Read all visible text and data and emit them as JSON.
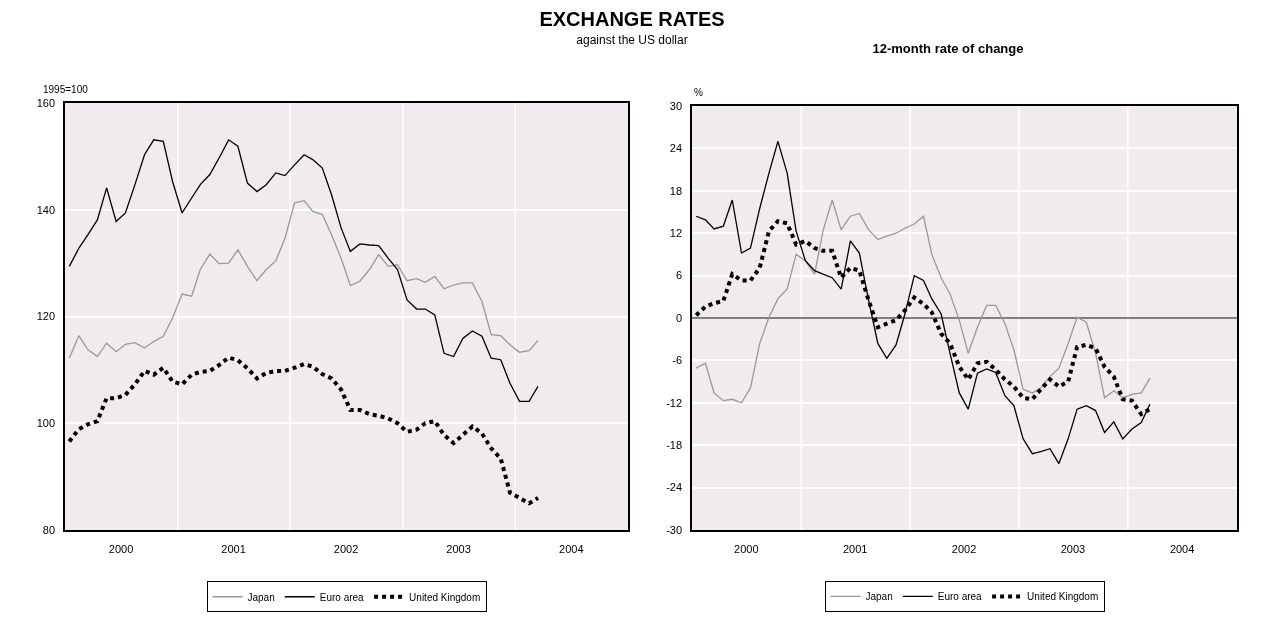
{
  "chart_data": [
    {
      "type": "line",
      "title": "EXCHANGE RATES",
      "subtitle": "against the US dollar",
      "ylabel": "1995=100",
      "ylim": [
        80,
        160
      ],
      "yticks": [
        80,
        100,
        120,
        140,
        160
      ],
      "xlim": [
        "2000-01-01",
        "2005-01-01"
      ],
      "xticks": [
        {
          "value": "2000-07-01",
          "label": "2000"
        },
        {
          "value": "2001-07-01",
          "label": "2001"
        },
        {
          "value": "2002-07-01",
          "label": "2002"
        },
        {
          "value": "2003-07-01",
          "label": "2003"
        },
        {
          "value": "2004-07-01",
          "label": "2004"
        },
        {
          "value": "2001-01-01",
          "label": null
        },
        {
          "value": "2002-01-01",
          "label": null
        },
        {
          "value": "2003-01-01",
          "label": null
        },
        {
          "value": "2004-01-01",
          "label": null
        }
      ],
      "grid": true,
      "legend": "bottom",
      "marker": "none",
      "x": [
        "2000-01-15",
        "2000-02-15",
        "2000-03-15",
        "2000-04-15",
        "2000-05-15",
        "2000-06-15",
        "2000-07-15",
        "2000-08-15",
        "2000-09-15",
        "2000-10-15",
        "2000-11-15",
        "2000-12-15",
        "2001-01-15",
        "2001-02-15",
        "2001-03-15",
        "2001-04-15",
        "2001-05-15",
        "2001-06-15",
        "2001-07-15",
        "2001-08-15",
        "2001-09-15",
        "2001-10-15",
        "2001-11-15",
        "2001-12-15",
        "2002-01-15",
        "2002-02-15",
        "2002-03-15",
        "2002-04-15",
        "2002-05-15",
        "2002-06-15",
        "2002-07-15",
        "2002-08-15",
        "2002-09-15",
        "2002-10-15",
        "2002-11-15",
        "2002-12-15",
        "2003-01-15",
        "2003-02-15",
        "2003-03-15",
        "2003-04-15",
        "2003-05-15",
        "2003-06-15",
        "2003-07-15",
        "2003-08-15",
        "2003-09-15",
        "2003-10-15",
        "2003-11-15",
        "2003-12-15",
        "2004-01-15",
        "2004-02-15",
        "2004-03-15"
      ],
      "series": [
        {
          "name": "Japan",
          "color": "#999999",
          "line_style": "solid",
          "values": [
            112.2,
            116.4,
            113.8,
            112.5,
            115.0,
            113.4,
            114.8,
            115.1,
            114.1,
            115.3,
            116.3,
            119.7,
            124.2,
            123.8,
            128.8,
            131.7,
            129.9,
            130.0,
            132.5,
            129.4,
            126.7,
            128.8,
            130.4,
            134.7,
            141.3,
            141.7,
            139.7,
            139.1,
            135.3,
            130.9,
            125.8,
            126.6,
            128.8,
            131.6,
            129.4,
            129.7,
            126.7,
            127.1,
            126.4,
            127.5,
            125.2,
            125.9,
            126.3,
            126.3,
            122.8,
            116.6,
            116.4,
            114.7,
            113.3,
            113.6,
            115.5
          ]
        },
        {
          "name": "Euro area",
          "color": "#000000",
          "line_style": "solid",
          "values": [
            129.4,
            132.8,
            135.3,
            138.1,
            144.1,
            137.8,
            139.4,
            144.7,
            150.3,
            153.1,
            152.8,
            145.3,
            139.4,
            142.2,
            144.7,
            146.6,
            149.7,
            153.1,
            151.9,
            145.0,
            143.4,
            144.7,
            146.9,
            146.4,
            148.4,
            150.3,
            149.4,
            147.8,
            142.8,
            136.6,
            132.2,
            133.6,
            133.4,
            133.3,
            130.9,
            128.8,
            123.1,
            121.4,
            121.4,
            120.3,
            113.1,
            112.5,
            115.9,
            117.3,
            116.3,
            112.2,
            111.9,
            107.5,
            104.1,
            104.1,
            106.9
          ]
        },
        {
          "name": "United Kingdom",
          "color": "#000000",
          "line_style": "dotted",
          "values": [
            96.6,
            98.9,
            99.8,
            100.4,
            104.7,
            104.7,
            105.3,
            107.3,
            109.8,
            109.1,
            110.4,
            107.8,
            107.3,
            109.1,
            109.6,
            109.8,
            110.9,
            112.3,
            111.8,
            110.3,
            108.4,
            109.4,
            109.8,
            109.8,
            110.4,
            111.1,
            110.6,
            109.2,
            108.4,
            106.3,
            102.5,
            102.5,
            101.7,
            101.4,
            100.9,
            100.0,
            98.4,
            98.8,
            100.0,
            100.4,
            97.8,
            96.3,
            97.8,
            99.4,
            98.1,
            95.3,
            93.4,
            87.0,
            86.0,
            85.0,
            86.0
          ]
        }
      ]
    },
    {
      "type": "line",
      "title": "12-month rate of change",
      "ylabel": "%",
      "ylim": [
        -30,
        30
      ],
      "yticks": [
        -30,
        -24,
        -18,
        -12,
        -6,
        0,
        6,
        12,
        18,
        24,
        30
      ],
      "xlim": [
        "2000-01-01",
        "2005-01-01"
      ],
      "xticks": [
        {
          "value": "2000-07-01",
          "label": "2000"
        },
        {
          "value": "2001-07-01",
          "label": "2001"
        },
        {
          "value": "2002-07-01",
          "label": "2002"
        },
        {
          "value": "2003-07-01",
          "label": "2003"
        },
        {
          "value": "2004-07-01",
          "label": "2004"
        },
        {
          "value": "2001-01-01",
          "label": null
        },
        {
          "value": "2002-01-01",
          "label": null
        },
        {
          "value": "2003-01-01",
          "label": null
        },
        {
          "value": "2004-01-01",
          "label": null
        }
      ],
      "grid": true,
      "legend": "bottom",
      "marker": "none",
      "ref_lines": [
        {
          "axis": "y",
          "value": 0,
          "color": "#000000"
        }
      ],
      "x": [
        "2000-01-15",
        "2000-02-15",
        "2000-03-15",
        "2000-04-15",
        "2000-05-15",
        "2000-06-15",
        "2000-07-15",
        "2000-08-15",
        "2000-09-15",
        "2000-10-15",
        "2000-11-15",
        "2000-12-15",
        "2001-01-15",
        "2001-02-15",
        "2001-03-15",
        "2001-04-15",
        "2001-05-15",
        "2001-06-15",
        "2001-07-15",
        "2001-08-15",
        "2001-09-15",
        "2001-10-15",
        "2001-11-15",
        "2001-12-15",
        "2002-01-15",
        "2002-02-15",
        "2002-03-15",
        "2002-04-15",
        "2002-05-15",
        "2002-06-15",
        "2002-07-15",
        "2002-08-15",
        "2002-09-15",
        "2002-10-15",
        "2002-11-15",
        "2002-12-15",
        "2003-01-15",
        "2003-02-15",
        "2003-03-15",
        "2003-04-15",
        "2003-05-15",
        "2003-06-15",
        "2003-07-15",
        "2003-08-15",
        "2003-09-15",
        "2003-10-15",
        "2003-11-15",
        "2003-12-15",
        "2004-01-15",
        "2004-02-15",
        "2004-03-15"
      ],
      "series": [
        {
          "name": "Japan",
          "color": "#999999",
          "line_style": "solid",
          "values": [
            -7.1,
            -6.4,
            -10.6,
            -11.7,
            -11.5,
            -12.0,
            -9.9,
            -3.6,
            0.1,
            2.7,
            4.1,
            9.0,
            8.1,
            6.2,
            12.3,
            16.7,
            12.5,
            14.4,
            14.8,
            12.5,
            11.1,
            11.6,
            12.0,
            12.7,
            13.3,
            14.4,
            9.0,
            5.7,
            3.4,
            -0.3,
            -5.0,
            -1.3,
            1.8,
            1.8,
            -0.8,
            -4.5,
            -10.1,
            -10.6,
            -9.9,
            -8.3,
            -7.1,
            -3.6,
            0.1,
            -0.6,
            -5.0,
            -11.3,
            -10.3,
            -11.3,
            -10.8,
            -10.6,
            -8.5
          ]
        },
        {
          "name": "Euro area",
          "color": "#000000",
          "line_style": "solid",
          "values": [
            14.4,
            13.9,
            12.6,
            13.0,
            16.7,
            9.2,
            9.9,
            15.5,
            20.5,
            25.0,
            20.5,
            12.3,
            8.1,
            6.7,
            6.2,
            5.7,
            4.1,
            10.9,
            9.2,
            2.5,
            -3.6,
            -5.7,
            -3.8,
            0.6,
            6.0,
            5.3,
            2.7,
            0.6,
            -5.0,
            -10.6,
            -12.9,
            -7.8,
            -7.2,
            -7.7,
            -11.0,
            -12.4,
            -17.1,
            -19.2,
            -18.9,
            -18.5,
            -20.6,
            -17.1,
            -12.9,
            -12.4,
            -13.1,
            -16.2,
            -14.7,
            -17.1,
            -15.7,
            -14.8,
            -12.2
          ]
        },
        {
          "name": "United Kingdom",
          "color": "#000000",
          "line_style": "dotted",
          "values": [
            0.4,
            1.6,
            2.1,
            2.4,
            6.2,
            5.3,
            5.3,
            7.1,
            12.3,
            13.7,
            13.4,
            10.4,
            10.9,
            9.9,
            9.5,
            9.5,
            5.7,
            7.1,
            6.7,
            2.5,
            -1.3,
            -0.8,
            -0.3,
            1.1,
            2.9,
            2.0,
            0.8,
            -2.2,
            -3.6,
            -6.9,
            -8.7,
            -6.4,
            -6.2,
            -7.3,
            -8.7,
            -9.7,
            -11.3,
            -11.5,
            -10.1,
            -8.7,
            -9.7,
            -9.0,
            -4.1,
            -3.8,
            -4.3,
            -6.9,
            -8.3,
            -11.5,
            -11.7,
            -13.6,
            -12.9
          ]
        }
      ]
    }
  ]
}
